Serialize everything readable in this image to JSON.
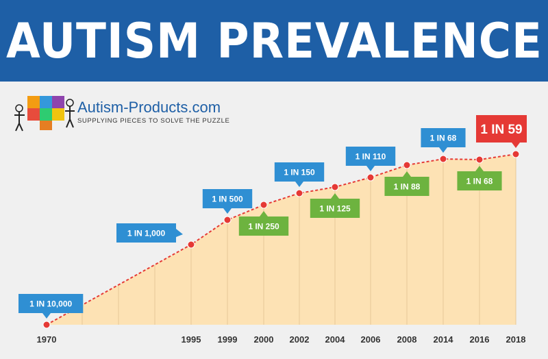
{
  "header": {
    "title": "AUTISM PREVALENCE"
  },
  "logo": {
    "name": "Autism-Products.com",
    "tagline": "SUPPLYING PIECES TO SOLVE THE PUZZLE"
  },
  "colors": {
    "banner": "#1e5fa6",
    "area_fill": "#fde2b4",
    "line": "#e53935",
    "label_blue": "#2f8fd3",
    "label_green": "#6db33f",
    "label_red": "#e53935"
  },
  "chart_data": {
    "type": "area",
    "x": [
      1970,
      1995,
      1999,
      2000,
      2002,
      2004,
      2006,
      2008,
      2014,
      2016,
      2018
    ],
    "x_tick_labels": [
      "1970",
      "1995",
      "1999",
      "2000",
      "2002",
      "2004",
      "2006",
      "2008",
      "2014",
      "2016",
      "2018"
    ],
    "labels": [
      "1 IN 10,000",
      "1 IN 1,000",
      "1 IN 500",
      "1 IN 250",
      "1 IN 150",
      "1 IN 125",
      "1 IN 110",
      "1 IN 88",
      "1 IN 68",
      "1 IN 68",
      "1 IN 59"
    ],
    "label_style": [
      "blue",
      "blue",
      "blue",
      "green",
      "blue",
      "green",
      "blue",
      "green",
      "blue",
      "green",
      "red"
    ],
    "label_position": [
      "above",
      "above",
      "above",
      "below",
      "above",
      "below",
      "above",
      "below",
      "above",
      "below",
      "above"
    ],
    "title": "AUTISM PREVALENCE",
    "xlabel": "",
    "ylabel": "",
    "grid": false,
    "legend": "none"
  }
}
